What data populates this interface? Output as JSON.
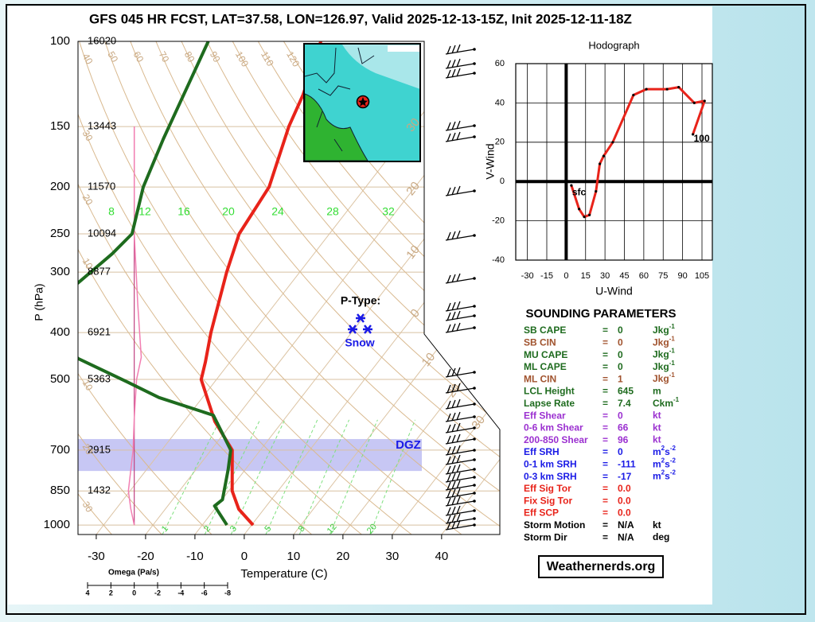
{
  "chart_data": [
    {
      "type": "skewt",
      "title": "GFS 045 HR FCST, LAT=37.58, LON=126.97, Valid 2025-12-13-15Z, Init 2025-12-11-18Z",
      "xlabel": "Temperature (C)",
      "ylabel": "P (hPa)",
      "xlim": [
        -33.7,
        51.8
      ],
      "ylim": [
        1046,
        100
      ],
      "log_y": true,
      "xticks": [
        -30,
        -20,
        -10,
        0,
        10,
        20,
        30,
        40
      ],
      "yticks": [
        100,
        150,
        200,
        250,
        300,
        400,
        500,
        700,
        850,
        1000
      ],
      "heights": [
        16020,
        13443,
        11570,
        10094,
        8877,
        6921,
        5363,
        2915,
        1432,
        null
      ],
      "series": [
        {
          "color": "#e8231a",
          "pressure": [
            1000,
            927,
            850,
            700,
            611,
            500,
            460,
            400,
            300,
            250,
            200,
            150,
            129,
            100
          ],
          "values": [
            0.3,
            -5.1,
            -9.3,
            -15.7,
            -23.7,
            -33.1,
            -35.0,
            -38.5,
            -44.8,
            -48.3,
            -49.6,
            -55.1,
            -57.2,
            -62.0
          ]
        },
        {
          "color": "#1e6b1e",
          "pressure": [
            1000,
            913,
            886,
            767,
            700,
            593,
            545,
            506,
            452,
            350,
            275,
            250,
            200,
            159,
            129,
            100
          ],
          "values": [
            -5.0,
            -10.5,
            -9.9,
            -13.5,
            -16.0,
            -25.0,
            -38.8,
            -47.7,
            -61.5,
            -75.0,
            -70.9,
            -70.0,
            -75.1,
            -78.6,
            -81.4,
            -84.8
          ]
        }
      ],
      "omega": {
        "label": "Omega (Pa/s)",
        "color": "#f27fb2",
        "lim": [
          4,
          -8
        ],
        "ticks": [
          4,
          2,
          0,
          -2,
          -4,
          -6,
          -8
        ],
        "pressure": [
          150,
          250,
          350,
          450,
          500,
          600,
          700,
          850,
          925,
          1000
        ],
        "values": [
          0,
          0,
          -0.3,
          -0.6,
          -0.2,
          0,
          0.1,
          0.5,
          0.3,
          0
        ]
      },
      "dgz": {
        "label": "DGZ",
        "pressure": [
          773,
          664
        ],
        "color": "#b4b4f0"
      },
      "ptype": {
        "title": "P-Type:",
        "label": "Snow",
        "color": "#1a1ae6"
      },
      "dry_adiabats": [
        {
          "value": -30,
          "label": "30"
        },
        {
          "value": -20,
          "label": "20"
        },
        {
          "value": -10,
          "label": "10"
        },
        10,
        20,
        30,
        40,
        50,
        60,
        70,
        80,
        90,
        100,
        110,
        120
      ],
      "isotherm_labels": [
        {
          "value": -30,
          "label": "30"
        },
        {
          "value": -20,
          "label": "20"
        },
        {
          "value": -10,
          "label": "10"
        },
        0,
        10,
        20,
        30
      ],
      "mixing_ratios": [
        1,
        2,
        3,
        5,
        8,
        12,
        20
      ],
      "moist_labels": [
        8,
        12,
        16,
        20,
        24,
        28,
        32
      ]
    },
    {
      "type": "line",
      "title": "Hodograph",
      "xlabel": "U-Wind",
      "ylabel": "V-Wind",
      "xlim": [
        -39,
        113
      ],
      "ylim": [
        -40,
        60
      ],
      "xticks": [
        -30,
        -15,
        0,
        15,
        30,
        45,
        60,
        75,
        90,
        105
      ],
      "yticks": [
        -40,
        -20,
        0,
        20,
        40,
        60
      ],
      "grid": true,
      "start_label": "sfc",
      "end_label": "100",
      "series": [
        {
          "color": "#e8231a",
          "x": [
            4,
            10,
            14,
            18,
            23,
            26,
            29,
            36,
            52,
            62,
            78,
            87,
            99,
            107,
            98
          ],
          "values": [
            -2,
            -14,
            -18,
            -17,
            -5,
            9,
            13,
            20,
            44,
            47,
            47,
            48,
            40,
            41,
            24
          ]
        }
      ]
    }
  ],
  "parameters": {
    "title": "SOUNDING PARAMETERS",
    "separator": "=",
    "rows": [
      {
        "label": "SB CAPE",
        "value": "0",
        "unit": [
          "Jkg",
          "-1"
        ],
        "color": "#1e6b1e"
      },
      {
        "label": "SB CIN",
        "value": "0",
        "unit": [
          "Jkg",
          "-1"
        ],
        "color": "#a0522d"
      },
      {
        "label": "MU CAPE",
        "value": "0",
        "unit": [
          "Jkg",
          "-1"
        ],
        "color": "#1e6b1e"
      },
      {
        "label": "ML CAPE",
        "value": "0",
        "unit": [
          "Jkg",
          "-1"
        ],
        "color": "#1e6b1e"
      },
      {
        "label": "ML CIN",
        "value": "1",
        "unit": [
          "Jkg",
          "-1"
        ],
        "color": "#a0522d"
      },
      {
        "label": "LCL Height",
        "value": "645",
        "unit": [
          "m"
        ],
        "color": "#1e6b1e"
      },
      {
        "label": "Lapse Rate",
        "value": "7.4",
        "unit": [
          "Ckm",
          "-1"
        ],
        "color": "#1e6b1e"
      },
      {
        "label": "Eff Shear",
        "value": "0",
        "unit": [
          "kt"
        ],
        "color": "#9b30d0"
      },
      {
        "label": "0-6 km Shear",
        "value": "66",
        "unit": [
          "kt"
        ],
        "color": "#9b30d0"
      },
      {
        "label": "200-850 Shear",
        "value": "96",
        "unit": [
          "kt"
        ],
        "color": "#9b30d0"
      },
      {
        "label": "Eff SRH",
        "value": "0",
        "unit": [
          "m",
          "2",
          "s",
          "-2"
        ],
        "color": "#1a1ae6"
      },
      {
        "label": "0-1 km SRH",
        "value": "-111",
        "unit": [
          "m",
          "2",
          "s",
          "-2"
        ],
        "color": "#1a1ae6"
      },
      {
        "label": "0-3 km SRH",
        "value": "-17",
        "unit": [
          "m",
          "2",
          "s",
          "-2"
        ],
        "color": "#1a1ae6"
      },
      {
        "label": "Eff Sig Tor",
        "value": "0.0",
        "color": "#e8231a"
      },
      {
        "label": "Fix Sig Tor",
        "value": "0.0",
        "color": "#e8231a"
      },
      {
        "label": "Eff SCP",
        "value": "0.0",
        "color": "#e8231a"
      },
      {
        "label": "Storm Motion",
        "value": "N/A",
        "unit": [
          "kt"
        ],
        "color": "#000000"
      },
      {
        "label": "Storm Dir",
        "value": "N/A",
        "unit": [
          "deg"
        ],
        "color": "#000000"
      }
    ]
  },
  "footer": "Weathernerds.org"
}
